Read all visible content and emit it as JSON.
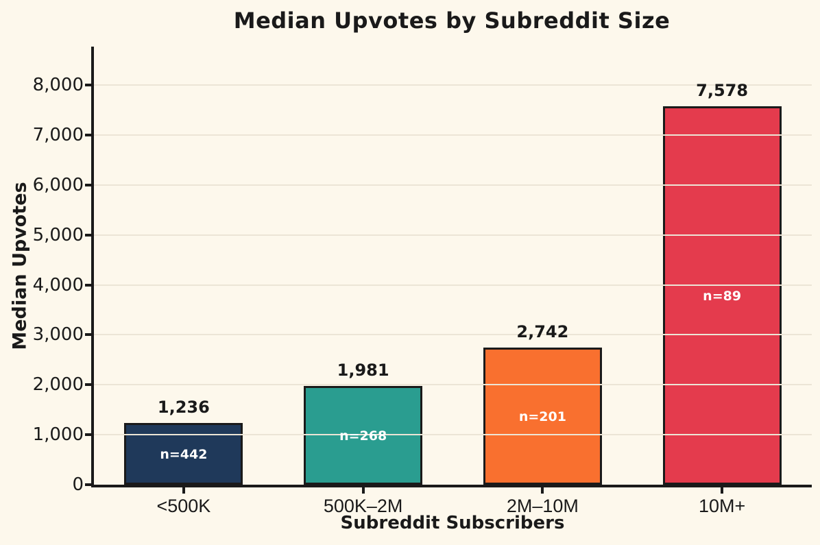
{
  "chart_data": {
    "type": "bar",
    "title": "Median Upvotes by Subreddit Size",
    "xlabel": "Subreddit Subscribers",
    "ylabel": "Median Upvotes",
    "categories": [
      "<500K",
      "500K–2M",
      "2M–10M",
      "10M+"
    ],
    "values": [
      1236,
      1981,
      2742,
      7578
    ],
    "value_labels": [
      "1,236",
      "1,981",
      "2,742",
      "7,578"
    ],
    "sample_size_labels": [
      "n=442",
      "n=268",
      "n=201",
      "n=89"
    ],
    "bar_colors": [
      "#1f395a",
      "#2a9d90",
      "#f9702f",
      "#e43b4d"
    ],
    "ylim": [
      0,
      8770
    ],
    "yticks": [
      0,
      1000,
      2000,
      3000,
      4000,
      5000,
      6000,
      7000,
      8000
    ],
    "ytick_labels": [
      "0",
      "1,000",
      "2,000",
      "3,000",
      "4,000",
      "5,000",
      "6,000",
      "7,000",
      "8,000"
    ],
    "grid": "horizontal-only, drawn above bars",
    "legend": "none"
  },
  "style": {
    "background": "#fdf8ec",
    "text_color": "#1a1a1a",
    "grid_color": "#ece5d6",
    "bar_edge_color": "#1a1a1a",
    "inner_label_color": "#ffffff"
  }
}
